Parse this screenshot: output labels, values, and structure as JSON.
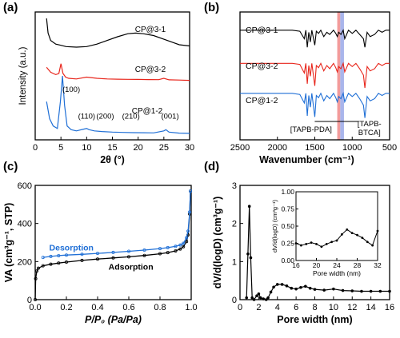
{
  "colors": {
    "black": "#000000",
    "red": "#e8261c",
    "blue": "#1f6fd6",
    "highlight_red": "#f08a8a",
    "highlight_blue": "#9aa8e8"
  },
  "panels": [
    {
      "key": "a",
      "label": "(a)"
    },
    {
      "key": "b",
      "label": "(b)"
    },
    {
      "key": "c",
      "label": "(c)"
    },
    {
      "key": "d",
      "label": "(d)"
    }
  ],
  "chart_data": [
    {
      "panel": "(a)",
      "type": "line",
      "xlabel": "2θ (°)",
      "ylabel": "Intensity (a.u.)",
      "xlim": [
        0,
        30
      ],
      "xticks": [
        0,
        5,
        10,
        15,
        20,
        25,
        30
      ],
      "ylim": [
        0,
        1
      ],
      "yticks_shown": false,
      "series": [
        {
          "name": "CP@3-1",
          "color": "#000000",
          "x": [
            2.2,
            2.5,
            3,
            4,
            5,
            6,
            8,
            10,
            12,
            14,
            16,
            18,
            19.5,
            21,
            23,
            25,
            27,
            28,
            30
          ],
          "y": [
            0.98,
            0.86,
            0.8,
            0.77,
            0.76,
            0.75,
            0.745,
            0.75,
            0.77,
            0.8,
            0.83,
            0.855,
            0.86,
            0.855,
            0.84,
            0.81,
            0.78,
            0.765,
            0.755
          ]
        },
        {
          "name": "CP@3-2",
          "color": "#e8261c",
          "x": [
            2.2,
            3,
            4,
            4.6,
            5.0,
            5.4,
            5.9,
            6.5,
            8,
            10,
            12,
            14,
            16,
            18,
            20,
            22,
            24,
            25,
            26,
            28,
            30
          ],
          "y": [
            0.58,
            0.54,
            0.52,
            0.53,
            0.61,
            0.53,
            0.5,
            0.49,
            0.485,
            0.5,
            0.49,
            0.485,
            0.483,
            0.482,
            0.481,
            0.48,
            0.479,
            0.49,
            0.478,
            0.476,
            0.473
          ]
        },
        {
          "name": "CP@1-2",
          "color": "#1f6fd6",
          "x": [
            2.2,
            2.8,
            3.5,
            4.3,
            4.9,
            5.3,
            5.7,
            6.2,
            7,
            8,
            9.5,
            10,
            10.5,
            11.5,
            13,
            15,
            17,
            19,
            21,
            23,
            25,
            25.4,
            26,
            28,
            30
          ],
          "y": [
            0.3,
            0.16,
            0.1,
            0.08,
            0.3,
            0.51,
            0.27,
            0.1,
            0.07,
            0.06,
            0.075,
            0.08,
            0.07,
            0.06,
            0.055,
            0.05,
            0.048,
            0.046,
            0.045,
            0.044,
            0.06,
            0.07,
            0.05,
            0.042,
            0.04
          ]
        }
      ],
      "annotations": [
        {
          "text": "(100)",
          "x": 7.0,
          "y": 0.38
        },
        {
          "text": "(110)",
          "x": 10.0,
          "y": 0.16
        },
        {
          "text": "(200)",
          "x": 13.6,
          "y": 0.16
        },
        {
          "text": "(210)",
          "x": 18.6,
          "y": 0.16
        },
        {
          "text": "(001)",
          "x": 26.2,
          "y": 0.16
        }
      ]
    },
    {
      "panel": "(b)",
      "type": "line",
      "xlabel": "Wavenumber (cm⁻¹)",
      "ylabel": "",
      "xlim": [
        2500,
        500
      ],
      "x_reversed": true,
      "xticks": [
        2500,
        2000,
        1500,
        1000,
        500
      ],
      "yticks_shown": false,
      "highlight_bands": [
        {
          "x0": 1200,
          "x1": 1160,
          "color": "#f08a8a"
        },
        {
          "x0": 1160,
          "x1": 1110,
          "color": "#9aa8e8"
        }
      ],
      "series": [
        {
          "name": "CP@3-1",
          "color": "#000000",
          "baseline": 0.86,
          "x": [
            2500,
            1800,
            1700,
            1640,
            1620,
            1600,
            1580,
            1560,
            1540,
            1500,
            1480,
            1450,
            1420,
            1380,
            1340,
            1300,
            1250,
            1220,
            1200,
            1180,
            1150,
            1120,
            1100,
            1050,
            1000,
            950,
            900,
            850,
            830,
            800,
            760,
            700,
            650,
            600,
            550,
            500
          ],
          "y": [
            0.86,
            0.86,
            0.85,
            0.78,
            0.86,
            0.7,
            0.84,
            0.75,
            0.86,
            0.72,
            0.85,
            0.83,
            0.86,
            0.8,
            0.84,
            0.82,
            0.86,
            0.83,
            0.8,
            0.84,
            0.82,
            0.86,
            0.78,
            0.86,
            0.83,
            0.86,
            0.82,
            0.78,
            0.7,
            0.84,
            0.8,
            0.82,
            0.86,
            0.84,
            0.86,
            0.86
          ]
        },
        {
          "name": "CP@3-2",
          "color": "#e8261c",
          "baseline": 0.55,
          "x": [
            2500,
            1800,
            1700,
            1640,
            1620,
            1600,
            1580,
            1560,
            1540,
            1500,
            1480,
            1450,
            1420,
            1380,
            1340,
            1300,
            1250,
            1220,
            1200,
            1180,
            1150,
            1120,
            1100,
            1050,
            1000,
            950,
            900,
            850,
            830,
            800,
            760,
            700,
            650,
            600,
            550,
            500
          ],
          "y": [
            0.55,
            0.55,
            0.54,
            0.46,
            0.55,
            0.36,
            0.53,
            0.43,
            0.55,
            0.34,
            0.53,
            0.51,
            0.55,
            0.48,
            0.53,
            0.5,
            0.55,
            0.51,
            0.47,
            0.52,
            0.5,
            0.55,
            0.47,
            0.55,
            0.52,
            0.55,
            0.5,
            0.44,
            0.32,
            0.52,
            0.48,
            0.5,
            0.55,
            0.53,
            0.55,
            0.55
          ]
        },
        {
          "name": "CP@1-2",
          "color": "#1f6fd6",
          "baseline": 0.27,
          "x": [
            2500,
            1800,
            1700,
            1640,
            1620,
            1600,
            1580,
            1560,
            1540,
            1500,
            1480,
            1450,
            1420,
            1380,
            1340,
            1300,
            1250,
            1220,
            1200,
            1180,
            1150,
            1120,
            1100,
            1050,
            1000,
            950,
            900,
            850,
            830,
            800,
            760,
            700,
            650,
            600,
            550,
            500
          ],
          "y": [
            0.27,
            0.27,
            0.26,
            0.18,
            0.27,
            0.06,
            0.25,
            0.14,
            0.27,
            0.05,
            0.25,
            0.23,
            0.27,
            0.2,
            0.25,
            0.22,
            0.27,
            0.23,
            0.19,
            0.24,
            0.22,
            0.27,
            0.19,
            0.27,
            0.24,
            0.27,
            0.22,
            0.16,
            0.04,
            0.24,
            0.2,
            0.22,
            0.27,
            0.25,
            0.27,
            0.27
          ]
        }
      ],
      "annotations": [
        {
          "text": "[TAPB-PDA]",
          "x": 1550,
          "y": -0.08
        },
        {
          "text": "[TAPB-",
          "x": 770,
          "y": 0.0
        },
        {
          "text": "BTCA]",
          "x": 770,
          "y": -0.1
        }
      ]
    },
    {
      "panel": "(c)",
      "type": "line",
      "xlabel": "P/P₀ (Pa/Pa)",
      "ylabel": "VA (cm³g⁻¹, STP)",
      "xlim": [
        0.0,
        1.0
      ],
      "xticks": [
        0.0,
        0.2,
        0.4,
        0.6,
        0.8,
        1.0
      ],
      "ylim": [
        0,
        600
      ],
      "yticks": [
        0,
        200,
        400,
        600
      ],
      "series": [
        {
          "name": "Adsorption",
          "color": "#000000",
          "x": [
            0.0,
            0.003,
            0.01,
            0.02,
            0.05,
            0.1,
            0.15,
            0.2,
            0.3,
            0.4,
            0.5,
            0.6,
            0.7,
            0.8,
            0.85,
            0.9,
            0.93,
            0.95,
            0.97,
            0.98,
            0.99,
            0.995
          ],
          "y": [
            0,
            110,
            150,
            165,
            178,
            186,
            192,
            197,
            206,
            213,
            219,
            225,
            232,
            241,
            247,
            256,
            266,
            278,
            305,
            340,
            450,
            570
          ]
        },
        {
          "name": "Desorption",
          "color": "#1f6fd6",
          "x": [
            0.995,
            0.99,
            0.98,
            0.97,
            0.95,
            0.93,
            0.9,
            0.85,
            0.8,
            0.7,
            0.6,
            0.5,
            0.4,
            0.3,
            0.2,
            0.15,
            0.1,
            0.05
          ],
          "y": [
            570,
            460,
            360,
            325,
            296,
            287,
            280,
            273,
            268,
            260,
            254,
            248,
            243,
            238,
            234,
            231,
            227,
            222
          ]
        }
      ],
      "annotations": [
        {
          "text": "Desorption",
          "x": 0.09,
          "y": 258
        },
        {
          "text": "Adsorption",
          "x": 0.47,
          "y": 158
        }
      ]
    },
    {
      "panel": "(d)",
      "type": "line",
      "xlabel": "Pore width (nm)",
      "ylabel": "dV/d(logD) (cm³g⁻¹)",
      "xlim": [
        0,
        16
      ],
      "xticks": [
        0,
        2,
        4,
        6,
        8,
        10,
        12,
        14,
        16
      ],
      "ylim": [
        0,
        3
      ],
      "yticks": [
        0,
        1,
        2,
        3
      ],
      "series": [
        {
          "name": "",
          "color": "#000000",
          "x": [
            0.7,
            0.85,
            1.0,
            1.15,
            1.3,
            1.5,
            1.8,
            2.0,
            2.2,
            2.5,
            2.8,
            3.0,
            3.3,
            3.6,
            4.0,
            4.5,
            5.0,
            5.5,
            6.0,
            6.5,
            7.0,
            7.5,
            8.0,
            9.0,
            10.0,
            11.0,
            12.0,
            13.0,
            14.0,
            15.0,
            16.0
          ],
          "y": [
            0.05,
            1.2,
            2.45,
            1.1,
            0.05,
            0.0,
            0.1,
            0.15,
            0.05,
            0.02,
            0.0,
            0.05,
            0.2,
            0.33,
            0.4,
            0.4,
            0.36,
            0.3,
            0.28,
            0.32,
            0.35,
            0.3,
            0.27,
            0.25,
            0.28,
            0.24,
            0.23,
            0.22,
            0.22,
            0.22,
            0.22
          ]
        }
      ],
      "inset": {
        "xlabel": "Pore width (nm)",
        "ylabel": "dV/d(logD) (cm³g⁻¹)",
        "xlim": [
          16,
          32
        ],
        "xticks": [
          16,
          20,
          24,
          28,
          32
        ],
        "ylim": [
          0.0,
          1.0
        ],
        "yticks": [
          0.0,
          0.25,
          0.5,
          0.75,
          1.0
        ],
        "ytick_labels": [
          "0.00",
          "0.25",
          "0.50",
          "0.75",
          "1.00"
        ],
        "series": [
          {
            "name": "",
            "color": "#000000",
            "x": [
              16,
              17,
              18,
              19,
              20,
              21,
              22,
              23,
              24,
              25,
              26,
              27,
              28,
              29,
              30,
              31,
              32
            ],
            "y": [
              0.25,
              0.22,
              0.24,
              0.26,
              0.24,
              0.2,
              0.24,
              0.27,
              0.29,
              0.38,
              0.45,
              0.4,
              0.37,
              0.33,
              0.27,
              0.22,
              0.43
            ]
          }
        ]
      }
    }
  ]
}
